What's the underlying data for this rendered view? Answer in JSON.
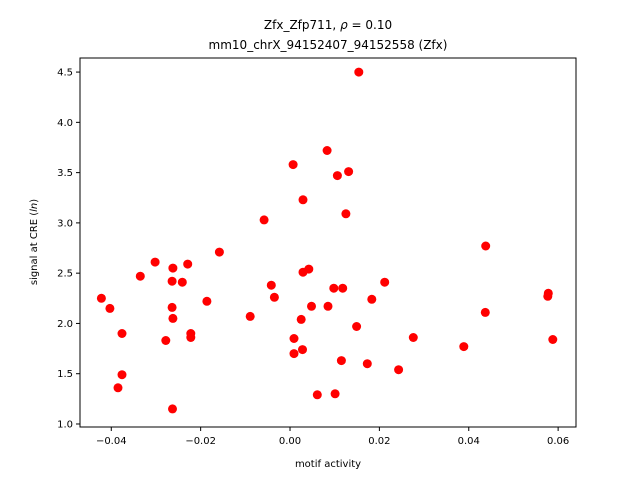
{
  "chart_data": {
    "type": "scatter",
    "title_line1_prefix": "Zfx_Zfp711, ",
    "title_line1_rho": "ρ",
    "title_line1_suffix": " = 0.10",
    "title_line2": "mm10_chrX_94152407_94152558 (Zfx)",
    "xlabel": "motif activity",
    "ylabel_prefix": "signal at CRE (",
    "ylabel_italic": "ln",
    "ylabel_suffix": ")",
    "xlim": [
      -0.047,
      0.064
    ],
    "ylim": [
      0.97,
      4.64
    ],
    "xticks": [
      -0.04,
      -0.02,
      0.0,
      0.02,
      0.04,
      0.06
    ],
    "xtick_labels": [
      "−0.04",
      "−0.02",
      "0.00",
      "0.02",
      "0.04",
      "0.06"
    ],
    "yticks": [
      1.0,
      1.5,
      2.0,
      2.5,
      3.0,
      3.5,
      4.0,
      4.5
    ],
    "ytick_labels": [
      "1.0",
      "1.5",
      "2.0",
      "2.5",
      "3.0",
      "3.5",
      "4.0",
      "4.5"
    ],
    "grid": false,
    "marker_color": "#ff0000",
    "points": [
      [
        -0.0422,
        2.25
      ],
      [
        -0.0403,
        2.15
      ],
      [
        -0.0385,
        1.36
      ],
      [
        -0.0376,
        1.49
      ],
      [
        -0.0376,
        1.9
      ],
      [
        -0.0335,
        2.47
      ],
      [
        -0.0302,
        2.61
      ],
      [
        -0.0278,
        1.83
      ],
      [
        -0.0263,
        1.15
      ],
      [
        -0.0264,
        2.42
      ],
      [
        -0.0262,
        2.55
      ],
      [
        -0.0264,
        2.16
      ],
      [
        -0.0262,
        2.05
      ],
      [
        -0.0241,
        2.41
      ],
      [
        -0.0229,
        2.59
      ],
      [
        -0.0222,
        1.9
      ],
      [
        -0.0222,
        1.86
      ],
      [
        -0.0186,
        2.22
      ],
      [
        -0.0158,
        2.71
      ],
      [
        -0.0089,
        2.07
      ],
      [
        -0.0058,
        3.03
      ],
      [
        -0.0042,
        2.38
      ],
      [
        -0.0035,
        2.26
      ],
      [
        0.0007,
        3.58
      ],
      [
        0.0009,
        1.85
      ],
      [
        0.0009,
        1.7
      ],
      [
        0.0025,
        2.04
      ],
      [
        0.0029,
        3.23
      ],
      [
        0.0029,
        2.51
      ],
      [
        0.0028,
        1.74
      ],
      [
        0.0042,
        2.54
      ],
      [
        0.0048,
        2.17
      ],
      [
        0.0061,
        1.29
      ],
      [
        0.0083,
        3.72
      ],
      [
        0.0085,
        2.17
      ],
      [
        0.0101,
        1.3
      ],
      [
        0.0098,
        2.35
      ],
      [
        0.0106,
        3.47
      ],
      [
        0.0115,
        1.63
      ],
      [
        0.0118,
        2.35
      ],
      [
        0.0125,
        3.09
      ],
      [
        0.0131,
        3.51
      ],
      [
        0.0149,
        1.97
      ],
      [
        0.0154,
        4.5
      ],
      [
        0.0173,
        1.6
      ],
      [
        0.0183,
        2.24
      ],
      [
        0.0212,
        2.41
      ],
      [
        0.0243,
        1.54
      ],
      [
        0.0276,
        1.86
      ],
      [
        0.0389,
        1.77
      ],
      [
        0.0438,
        2.77
      ],
      [
        0.0437,
        2.11
      ],
      [
        0.0577,
        2.27
      ],
      [
        0.0578,
        2.3
      ],
      [
        0.0588,
        1.84
      ]
    ]
  }
}
